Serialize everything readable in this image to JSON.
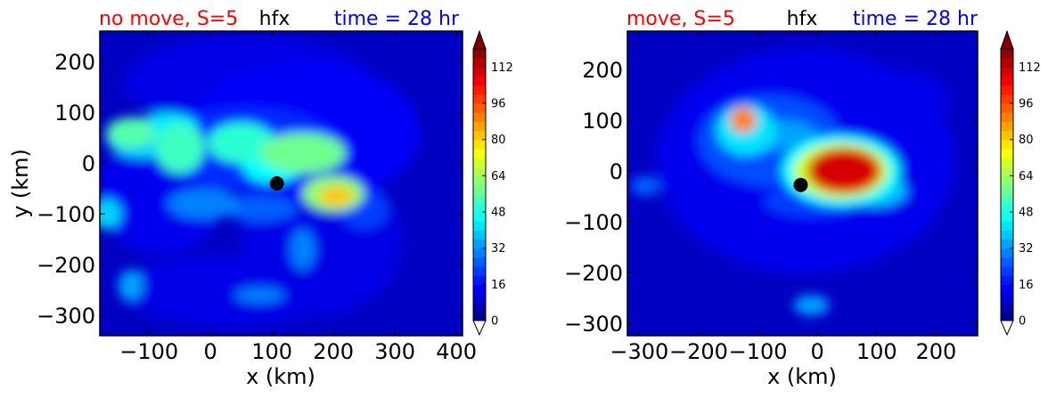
{
  "chart_data": [
    {
      "type": "heatmap",
      "title_left": "no move, S=5",
      "title_center": "hfx",
      "title_right": "time = 28 hr",
      "title_left_color": "#ff0000",
      "title_center_color": "#000000",
      "title_right_color": "#0000ff",
      "xlabel": "x (km)",
      "ylabel": "y (km)",
      "xlim": [
        -180,
        410
      ],
      "ylim": [
        -340,
        260
      ],
      "xticks": [
        -100,
        0,
        100,
        200,
        300,
        400
      ],
      "yticks": [
        -300,
        -200,
        -100,
        0,
        100,
        200
      ],
      "xtick_labels": [
        "−100",
        "0",
        "100",
        "200",
        "300",
        "400"
      ],
      "ytick_labels": [
        "−300",
        "−200",
        "−100",
        "0",
        "100",
        "200"
      ],
      "center_marker": [
        108,
        -40
      ],
      "colormap": "jet",
      "background_value": 8,
      "field_blobs": [
        {
          "x": 150,
          "y": 60,
          "rx": 190,
          "ry": 140,
          "value": 14
        },
        {
          "x": 60,
          "y": 160,
          "rx": 200,
          "ry": 90,
          "value": 12
        },
        {
          "x": 180,
          "y": -150,
          "rx": 130,
          "ry": 150,
          "value": 12
        },
        {
          "x": 40,
          "y": -250,
          "rx": 190,
          "ry": 70,
          "value": 12
        },
        {
          "x": -80,
          "y": -60,
          "rx": 100,
          "ry": 120,
          "value": 13
        },
        {
          "x": 60,
          "y": 30,
          "rx": 150,
          "ry": 80,
          "value": 20
        },
        {
          "x": -110,
          "y": 50,
          "rx": 60,
          "ry": 40,
          "value": 40
        },
        {
          "x": -50,
          "y": 30,
          "rx": 40,
          "ry": 50,
          "value": 52
        },
        {
          "x": -130,
          "y": 60,
          "rx": 40,
          "ry": 30,
          "value": 55
        },
        {
          "x": -70,
          "y": 70,
          "rx": 50,
          "ry": 30,
          "value": 42
        },
        {
          "x": 50,
          "y": 40,
          "rx": 55,
          "ry": 40,
          "value": 50
        },
        {
          "x": 150,
          "y": 20,
          "rx": 70,
          "ry": 40,
          "value": 58
        },
        {
          "x": 100,
          "y": 0,
          "rx": 50,
          "ry": 40,
          "value": 45
        },
        {
          "x": 200,
          "y": -60,
          "rx": 50,
          "ry": 35,
          "value": 62
        },
        {
          "x": 205,
          "y": -65,
          "rx": 28,
          "ry": 18,
          "value": 82
        },
        {
          "x": -10,
          "y": -80,
          "rx": 60,
          "ry": 30,
          "value": 30
        },
        {
          "x": 80,
          "y": -90,
          "rx": 60,
          "ry": 25,
          "value": 26
        },
        {
          "x": -170,
          "y": -100,
          "rx": 25,
          "ry": 30,
          "value": 40
        },
        {
          "x": 150,
          "y": -170,
          "rx": 20,
          "ry": 40,
          "value": 30
        },
        {
          "x": -130,
          "y": -240,
          "rx": 20,
          "ry": 30,
          "value": 34
        },
        {
          "x": 80,
          "y": -260,
          "rx": 40,
          "ry": 15,
          "value": 30
        },
        {
          "x": 250,
          "y": -90,
          "rx": 40,
          "ry": 40,
          "value": 22
        }
      ],
      "colorbar": {
        "min": 0,
        "max": 120,
        "step": 4,
        "ticks": [
          0,
          16,
          32,
          48,
          64,
          80,
          96,
          112
        ],
        "extend": "both"
      }
    },
    {
      "type": "heatmap",
      "title_left": "move, S=5",
      "title_center": "hfx",
      "title_right": "time = 28 hr",
      "title_left_color": "#ff0000",
      "title_center_color": "#000000",
      "title_right_color": "#0000ff",
      "xlabel": "x (km)",
      "ylabel": "",
      "xlim": [
        -320,
        270
      ],
      "ylim": [
        -325,
        275
      ],
      "xticks": [
        -300,
        -200,
        -100,
        0,
        100,
        200
      ],
      "yticks": [
        -300,
        -200,
        -100,
        0,
        100,
        200
      ],
      "xtick_labels": [
        "−300",
        "−200",
        "−100",
        "0",
        "100",
        "200"
      ],
      "ytick_labels": [
        "−300",
        "−200",
        "−100",
        "0",
        "100",
        "200"
      ],
      "center_marker": [
        -28,
        -28
      ],
      "colormap": "jet",
      "background_value": 8,
      "field_blobs": [
        {
          "x": -20,
          "y": 20,
          "rx": 250,
          "ry": 220,
          "value": 13
        },
        {
          "x": -80,
          "y": 60,
          "rx": 120,
          "ry": 90,
          "value": 24
        },
        {
          "x": -120,
          "y": 80,
          "rx": 50,
          "ry": 50,
          "value": 42
        },
        {
          "x": -125,
          "y": 100,
          "rx": 22,
          "ry": 25,
          "value": 90
        },
        {
          "x": -60,
          "y": 70,
          "rx": 60,
          "ry": 30,
          "value": 34
        },
        {
          "x": 40,
          "y": 0,
          "rx": 100,
          "ry": 70,
          "value": 45
        },
        {
          "x": 40,
          "y": 0,
          "rx": 80,
          "ry": 55,
          "value": 70
        },
        {
          "x": 45,
          "y": 0,
          "rx": 62,
          "ry": 45,
          "value": 110
        },
        {
          "x": 100,
          "y": -40,
          "rx": 50,
          "ry": 30,
          "value": 38
        },
        {
          "x": -10,
          "y": -60,
          "rx": 80,
          "ry": 30,
          "value": 22
        },
        {
          "x": -10,
          "y": -265,
          "rx": 30,
          "ry": 20,
          "value": 34
        },
        {
          "x": -290,
          "y": -30,
          "rx": 25,
          "ry": 20,
          "value": 26
        },
        {
          "x": 150,
          "y": 140,
          "rx": 70,
          "ry": 60,
          "value": 12
        }
      ],
      "colorbar": {
        "min": 0,
        "max": 120,
        "step": 4,
        "ticks": [
          0,
          16,
          32,
          48,
          64,
          80,
          96,
          112
        ],
        "extend": "both"
      }
    }
  ]
}
